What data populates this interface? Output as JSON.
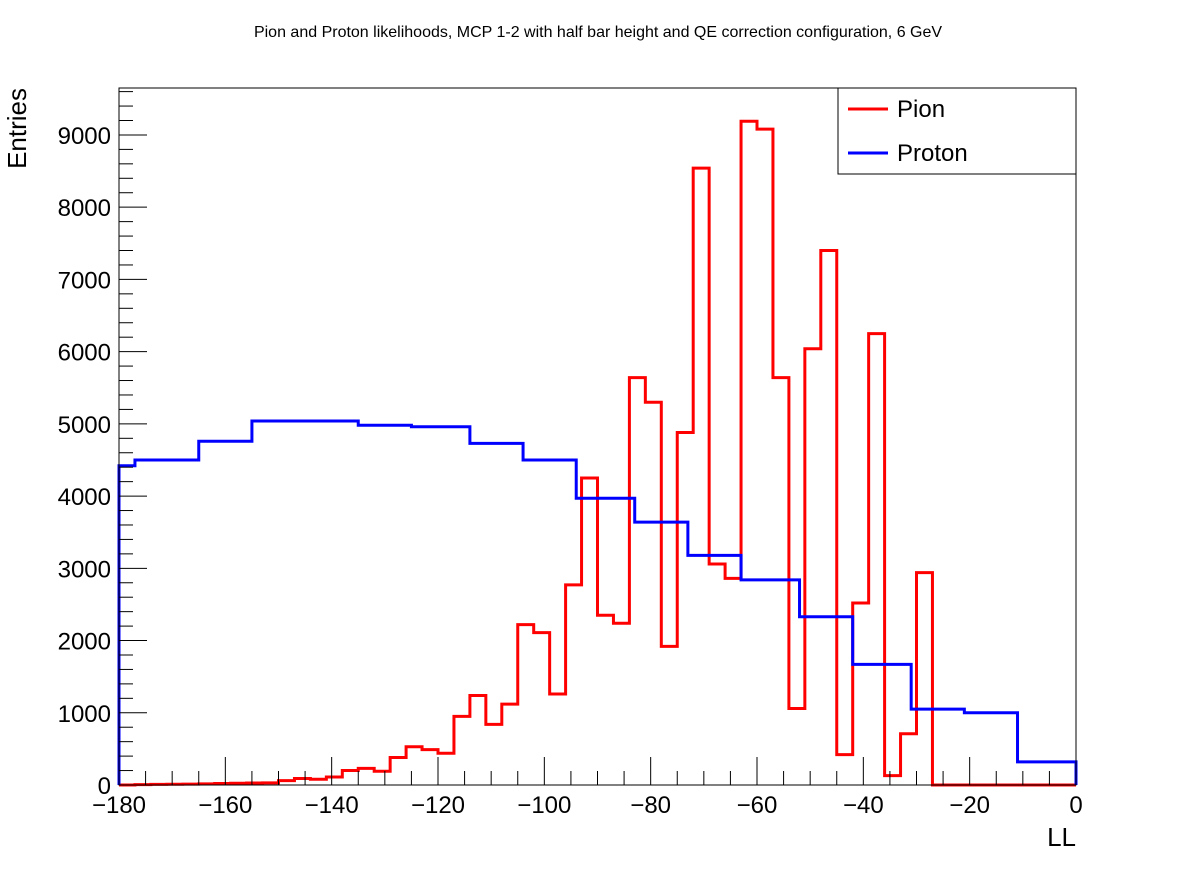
{
  "chart_data": {
    "type": "line",
    "title": "Pion and Proton likelihoods, MCP 1-2 with half bar height and QE correction configuration, 6 GeV",
    "xlabel": "LL",
    "ylabel": "Entries",
    "xlim": [
      -180,
      0
    ],
    "ylim": [
      0,
      9650
    ],
    "x_ticks": [
      "−180",
      "−160",
      "−140",
      "−120",
      "−100",
      "−80",
      "−60",
      "−40",
      "−20",
      "0"
    ],
    "x_tick_values": [
      -180,
      -160,
      -140,
      -120,
      -100,
      -80,
      -60,
      -40,
      -20,
      0
    ],
    "y_ticks": [
      "0",
      "1000",
      "2000",
      "3000",
      "4000",
      "5000",
      "6000",
      "7000",
      "8000",
      "9000"
    ],
    "y_tick_values": [
      0,
      1000,
      2000,
      3000,
      4000,
      5000,
      6000,
      7000,
      8000,
      9000
    ],
    "grid": false,
    "legend_position": "top-right",
    "series": [
      {
        "name": "Pion",
        "color": "#ff0000",
        "step": true,
        "edges": [
          -180,
          -177,
          -174,
          -171,
          -168,
          -165,
          -162,
          -159,
          -156,
          -153,
          -150,
          -147,
          -144,
          -141,
          -138,
          -135,
          -132,
          -129,
          -126,
          -123,
          -120,
          -117,
          -114,
          -111,
          -108,
          -105,
          -102,
          -99,
          -96,
          -93,
          -90,
          -87,
          -84,
          -81,
          -78,
          -75,
          -72,
          -69,
          -66,
          -63,
          -60,
          -57,
          -54,
          -51,
          -48,
          -45,
          -42,
          -39,
          -36,
          -33,
          -30,
          -27,
          -24,
          -21,
          -18,
          -15,
          -12,
          -9,
          -6,
          -3,
          0
        ],
        "values": [
          0,
          5,
          8,
          10,
          12,
          15,
          20,
          25,
          28,
          30,
          60,
          90,
          80,
          110,
          200,
          230,
          190,
          380,
          530,
          490,
          440,
          950,
          1240,
          840,
          1120,
          2220,
          2110,
          1260,
          2770,
          4250,
          2350,
          2240,
          5640,
          5300,
          1920,
          4880,
          8540,
          3060,
          2860,
          9190,
          9080,
          5640,
          1060,
          6040,
          7400,
          420,
          2520,
          6250,
          130,
          710,
          2940,
          0,
          0,
          0,
          0,
          0,
          0,
          0,
          0,
          0
        ]
      },
      {
        "name": "Proton",
        "color": "#0000ff",
        "step": true,
        "edges": [
          -180,
          -177,
          -165,
          -155,
          -135,
          -125,
          -114,
          -104,
          -94,
          -83,
          -73,
          -63,
          -52,
          -42,
          -31,
          -21,
          -11,
          0
        ],
        "values": [
          4420,
          4500,
          4760,
          5040,
          4980,
          4960,
          4730,
          4500,
          3970,
          3640,
          3180,
          2840,
          2330,
          1670,
          1050,
          1000,
          320
        ]
      }
    ]
  }
}
